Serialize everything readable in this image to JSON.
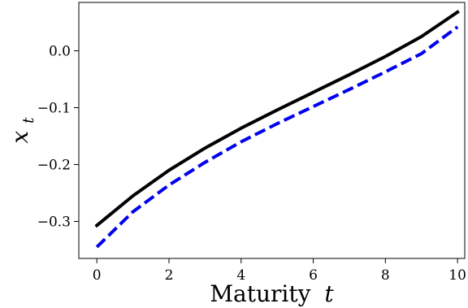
{
  "chart_data": {
    "type": "line",
    "title": "",
    "xlabel": "Maturity",
    "xlabel_var": "t",
    "ylabel_var": "x",
    "ylabel_sub": "t",
    "xlim": [
      -0.5,
      10.2
    ],
    "ylim": [
      -0.365,
      0.085
    ],
    "x_ticks": [
      0,
      2,
      4,
      6,
      8,
      10
    ],
    "x_tick_labels": [
      "0",
      "2",
      "4",
      "6",
      "8",
      "10"
    ],
    "y_ticks": [
      -0.3,
      -0.2,
      -0.1,
      0.0
    ],
    "y_tick_labels": [
      "−0.3",
      "−0.2",
      "−0.1",
      "0.0"
    ],
    "grid": false,
    "legend": "none",
    "x": [
      0,
      1,
      2,
      3,
      4,
      5,
      6,
      7,
      8,
      9,
      10
    ],
    "series": [
      {
        "style": "solid",
        "color": "#000000",
        "values": [
          -0.307,
          -0.255,
          -0.21,
          -0.171,
          -0.136,
          -0.104,
          -0.073,
          -0.042,
          -0.01,
          0.025,
          0.068
        ]
      },
      {
        "style": "dashed",
        "color": "#0000ee",
        "values": [
          -0.345,
          -0.283,
          -0.236,
          -0.196,
          -0.16,
          -0.128,
          -0.098,
          -0.068,
          -0.037,
          -0.005,
          0.042
        ]
      }
    ]
  }
}
